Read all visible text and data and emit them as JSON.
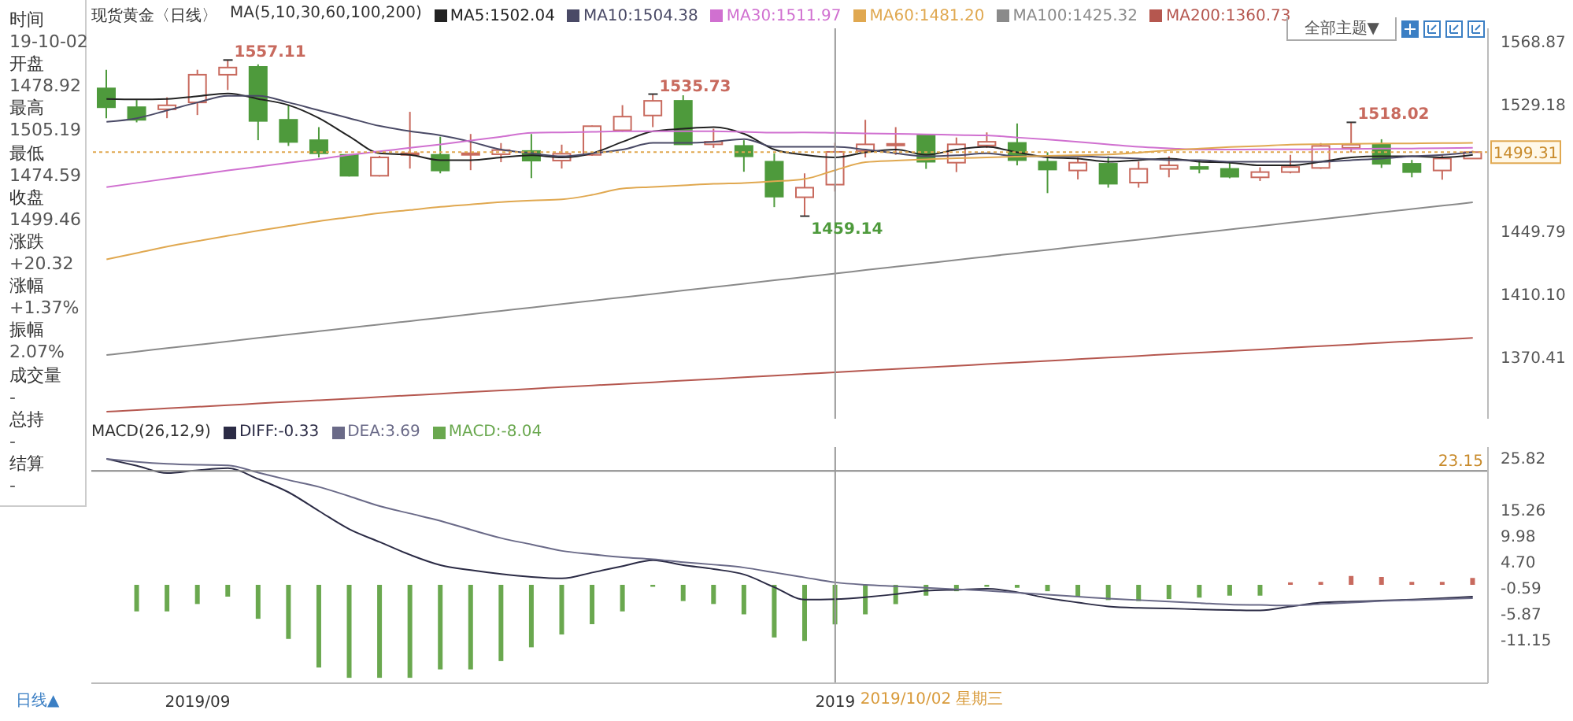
{
  "chart_data": [
    {
      "type": "other",
      "annotations": [
        "时间",
        "19-10-02",
        "开盘",
        "1478.92",
        "最高",
        "1505.19",
        "最低",
        "1474.59",
        "收盘",
        "1499.46",
        "涨跌",
        "+20.32",
        "涨幅",
        "+1.37%",
        "振幅",
        "2.07%",
        "成交量",
        "-",
        "总持",
        "-",
        "结算",
        "-"
      ]
    },
    {
      "type": "candlestick",
      "title": "现货黄金〈日线〉",
      "subtitle": "MA(5,10,30,60,100,200)",
      "legend": "top",
      "tick_labels": "y",
      "categories": [
        null,
        null,
        null,
        "2019/09",
        null,
        null,
        null,
        null,
        null,
        null,
        null,
        null,
        null,
        null,
        null,
        null,
        null,
        null,
        null,
        null,
        null,
        null,
        null,
        null,
        "2019",
        null,
        null,
        null,
        null,
        null,
        null,
        null,
        null,
        null,
        null,
        null,
        null,
        null,
        null,
        null,
        null,
        null,
        null,
        null,
        null,
        null
      ],
      "ohlc": [
        [
          1539.3,
          1551,
          1520.6,
          1527.5
        ],
        [
          1527.5,
          1532,
          1518,
          1519.6
        ],
        [
          1526.2,
          1533.7,
          1520.6,
          1528.7
        ],
        [
          1530.5,
          1551,
          1522.6,
          1547.9
        ],
        [
          1547.9,
          1557.11,
          1538.3,
          1552.4
        ],
        [
          1552.8,
          1554.4,
          1506.8,
          1518.9
        ],
        [
          1519.6,
          1528.8,
          1503.2,
          1505.7
        ],
        [
          1506.8,
          1515,
          1496,
          1498.6
        ],
        [
          1497.6,
          1498,
          1484,
          1484.5
        ],
        [
          1484.5,
          1497,
          1484,
          1496
        ],
        [
          1498,
          1524.6,
          1489,
          1498.6
        ],
        [
          1497.6,
          1509,
          1486,
          1487.8
        ],
        [
          1498,
          1510.7,
          1488,
          1498.6
        ],
        [
          1498,
          1505,
          1493,
          1500.6
        ],
        [
          1500,
          1510.7,
          1483,
          1494
        ],
        [
          1494,
          1504,
          1489,
          1498.3
        ],
        [
          1497.6,
          1516,
          1497,
          1515.6
        ],
        [
          1513,
          1528.8,
          1512,
          1521.6
        ],
        [
          1522.3,
          1535.73,
          1515,
          1531.5
        ],
        [
          1531.5,
          1535,
          1504,
          1504.2
        ],
        [
          1504.2,
          1514,
          1502,
          1505.8
        ],
        [
          1503.2,
          1506.8,
          1487,
          1496.7
        ],
        [
          1493.3,
          1498.6,
          1464.8,
          1471.4
        ],
        [
          1471,
          1486,
          1459.14,
          1477
        ],
        [
          1478.92,
          1505.19,
          1474.59,
          1499.46
        ],
        [
          1500,
          1519.6,
          1496,
          1504.2
        ],
        [
          1504.2,
          1515,
          1497.6,
          1504.5
        ],
        [
          1509.8,
          1510.8,
          1488.8,
          1493.3
        ],
        [
          1492.7,
          1508.5,
          1486.8,
          1504.2
        ],
        [
          1503.5,
          1511.7,
          1501.9,
          1505.8
        ],
        [
          1505.1,
          1517.3,
          1491,
          1494.3
        ],
        [
          1493.3,
          1499.2,
          1473.6,
          1488.4
        ],
        [
          1487.8,
          1496,
          1482.2,
          1492.7
        ],
        [
          1492,
          1496.7,
          1477,
          1479.5
        ],
        [
          1480.2,
          1493.4,
          1477,
          1488.8
        ],
        [
          1488.8,
          1496.7,
          1483.5,
          1491
        ],
        [
          1490,
          1494.4,
          1486,
          1488.8
        ],
        [
          1488.8,
          1493.4,
          1482.9,
          1483.9
        ],
        [
          1483.5,
          1489.8,
          1481.2,
          1486.8
        ],
        [
          1486.8,
          1497.6,
          1486,
          1490
        ],
        [
          1489.4,
          1505,
          1488.8,
          1503.2
        ],
        [
          1502,
          1518.02,
          1499.2,
          1504
        ],
        [
          1504.2,
          1507.4,
          1489.4,
          1492
        ],
        [
          1492,
          1494.4,
          1483.5,
          1486.8
        ],
        [
          1487.8,
          1497.6,
          1482,
          1495.3
        ],
        [
          1495.3,
          1500.2,
          1495,
          1499.31
        ]
      ],
      "colors": [
        "#4e9a3c",
        "#4e9a3c",
        "#c86a5e",
        "#c86a5e",
        "#c86a5e",
        "#4e9a3c",
        "#4e9a3c",
        "#4e9a3c",
        "#4e9a3c",
        "#c86a5e",
        "#c86a5e",
        "#4e9a3c",
        "#c86a5e",
        "#c86a5e",
        "#4e9a3c",
        "#c86a5e",
        "#c86a5e",
        "#c86a5e",
        "#c86a5e",
        "#4e9a3c",
        "#c86a5e",
        "#4e9a3c",
        "#4e9a3c",
        "#c86a5e",
        "#c86a5e",
        "#c86a5e",
        "#c86a5e",
        "#4e9a3c",
        "#c86a5e",
        "#c86a5e",
        "#4e9a3c",
        "#4e9a3c",
        "#c86a5e",
        "#4e9a3c",
        "#c86a5e",
        "#c86a5e",
        "#4e9a3c",
        "#4e9a3c",
        "#c86a5e",
        "#c86a5e",
        "#c86a5e",
        "#c86a5e",
        "#4e9a3c",
        "#4e9a3c",
        "#c86a5e",
        "#c86a5e"
      ],
      "series": [
        {
          "name": "MA5:1502.04",
          "type": "line",
          "color": "#222222",
          "values": [
            1532.7,
            1532.4,
            1532.7,
            1534.4,
            1536.1,
            1532.7,
            1528.8,
            1520.6,
            1509.1,
            1498.6,
            1497.6,
            1494.3,
            1494.3,
            1496.0,
            1497.3,
            1496.0,
            1498.6,
            1505.8,
            1512.4,
            1514.0,
            1515.0,
            1510.8,
            1500.9,
            1497.6,
            1496.0,
            1499.2,
            1500.9,
            1497.6,
            1500.9,
            1502.6,
            1499.2,
            1496.0,
            1495.3,
            1493.3,
            1494.3,
            1495.3,
            1493.3,
            1492.7,
            1491.0,
            1491.0,
            1493.3,
            1496.0,
            1496.7,
            1496.7,
            1496.0,
            1497.6
          ]
        },
        {
          "name": "MA10:1504.38",
          "type": "line",
          "color": "#4a4a66",
          "values": [
            1518.3,
            1520.6,
            1525.5,
            1530.5,
            1534.7,
            1534.7,
            1530.5,
            1525.5,
            1520.6,
            1515.7,
            1512.4,
            1509.8,
            1505.8,
            1500.9,
            1498.6,
            1496.7,
            1498.6,
            1500.9,
            1505.1,
            1505.1,
            1505.8,
            1507.5,
            1502.6,
            1502.6,
            1502.6,
            1500.9,
            1498.6,
            1496.7,
            1497.3,
            1498.6,
            1496.7,
            1496.7,
            1496.7,
            1496.0,
            1495.3,
            1494.3,
            1494.3,
            1493.3,
            1493.3,
            1493.3,
            1493.3,
            1494.3,
            1495.3,
            1496.7,
            1497.6,
            1499.2
          ]
        },
        {
          "name": "MA30:1511.97",
          "type": "line",
          "color": "#d070d0",
          "values": [
            1477.3,
            1480,
            1482.6,
            1485.2,
            1487.8,
            1490.2,
            1492.6,
            1495,
            1497.6,
            1499.8,
            1502,
            1504.2,
            1506.6,
            1509,
            1511.4,
            1511.7,
            1512,
            1512.4,
            1512.4,
            1512.4,
            1512.4,
            1512,
            1511.5,
            1511.7,
            1511.4,
            1511.1,
            1510.8,
            1510.5,
            1510.1,
            1509.8,
            1508.5,
            1507.2,
            1505.8,
            1504.2,
            1502.6,
            1501.7,
            1500.9,
            1500.9,
            1501,
            1501,
            1501.2,
            1501.3,
            1501.5,
            1501.6,
            1501.8,
            1502
          ]
        },
        {
          "name": "MA60:1481.20",
          "type": "line",
          "color": "#e0a850",
          "values": [
            1432,
            1436,
            1440,
            1443.5,
            1446.8,
            1450,
            1453,
            1456,
            1458.5,
            1461,
            1463,
            1465,
            1466.5,
            1468,
            1469,
            1469.7,
            1472.5,
            1476.5,
            1477.5,
            1478.5,
            1479.5,
            1480,
            1481,
            1482.5,
            1488,
            1493,
            1494,
            1494.8,
            1495.5,
            1496,
            1496.5,
            1497,
            1497.4,
            1497.8,
            1499,
            1500.5,
            1501.5,
            1502.5,
            1503.2,
            1504,
            1504.3,
            1504.5,
            1504.7,
            1504.8,
            1505,
            1505.1
          ]
        },
        {
          "name": "MA100:1425.32",
          "type": "line",
          "color": "#8a8a8a",
          "values": [
            1372.0,
            1374.1,
            1376.3,
            1378.4,
            1380.5,
            1382.7,
            1384.8,
            1386.9,
            1389.0,
            1391.2,
            1393.3,
            1395.4,
            1397.6,
            1399.7,
            1401.8,
            1404.0,
            1406.1,
            1408.2,
            1410.3,
            1412.5,
            1414.6,
            1416.7,
            1418.9,
            1421.0,
            1423.1,
            1425.3,
            1427.4,
            1429.5,
            1431.6,
            1433.8,
            1435.9,
            1438.0,
            1440.2,
            1442.3,
            1444.4,
            1446.6,
            1448.7,
            1450.8,
            1452.9,
            1455.1,
            1457.2,
            1459.3,
            1461.5,
            1463.6,
            1465.7,
            1467.8
          ]
        },
        {
          "name": "MA200:1360.73",
          "type": "line",
          "color": "#b5574f",
          "values": [
            1336.4,
            1337.4,
            1338.5,
            1339.5,
            1340.5,
            1341.6,
            1342.6,
            1343.6,
            1344.6,
            1345.7,
            1346.7,
            1347.7,
            1348.8,
            1349.8,
            1350.8,
            1351.9,
            1352.9,
            1353.9,
            1354.9,
            1356.0,
            1357.0,
            1358.0,
            1359.1,
            1360.1,
            1361.1,
            1362.2,
            1363.2,
            1364.2,
            1365.2,
            1366.3,
            1367.3,
            1368.3,
            1369.4,
            1370.4,
            1371.4,
            1372.5,
            1373.5,
            1374.5,
            1375.5,
            1376.6,
            1377.6,
            1378.6,
            1379.7,
            1380.7,
            1381.7,
            1382.8
          ]
        }
      ],
      "ylim": [
        1332,
        1577
      ],
      "yticks": [
        1370.41,
        {
          "value": 1410.1,
          "label": "1410.10"
        },
        1449.79,
        1529.18,
        1568.87
      ],
      "ref_lines": [
        {
          "axis": "y",
          "value": 1499.31,
          "label": "1499.31",
          "color": "#e0a850",
          "line_style": "dotted"
        },
        {
          "axis": "x",
          "value": "2019",
          "color": "#999999"
        }
      ],
      "annotations": [
        {
          "text": "1557.11",
          "y": 1557.11
        },
        {
          "text": "1535.73",
          "y": 1535.73
        },
        "1459.14",
        "1518.02",
        "全部主题▼"
      ]
    },
    {
      "type": "bar",
      "title": "MACD(26,12,9)",
      "legend": "top",
      "categories": [
        null,
        null,
        null,
        "2019/09",
        null,
        null,
        null,
        null,
        null,
        null,
        null,
        null,
        null,
        null,
        null,
        null,
        null,
        null,
        null,
        null,
        null,
        null,
        null,
        null,
        "2019",
        null,
        null,
        null,
        null,
        null,
        null,
        null,
        null,
        null,
        null,
        null,
        null,
        null,
        null,
        null,
        null,
        null,
        null,
        null,
        null,
        null
      ],
      "series": [
        {
          "name": "DIFF:-0.33",
          "type": "line",
          "color": "#2b2b45",
          "values": [
            25.6,
            24.2,
            22.7,
            23.3,
            23.7,
            21.5,
            18.8,
            15.0,
            11.3,
            8.7,
            6.1,
            4.0,
            3.0,
            2.2,
            1.6,
            1.3,
            2.5,
            3.8,
            5.0,
            4.0,
            3.2,
            2.1,
            -0.5,
            -3.0,
            -2.9,
            -2.5,
            -1.9,
            -1.2,
            -1.0,
            -0.8,
            -1.5,
            -2.7,
            -3.6,
            -4.4,
            -4.7,
            -4.8,
            -5.0,
            -5.1,
            -5.2,
            -4.4,
            -3.6,
            -3.4,
            -3.2,
            -3.0,
            -2.7,
            -2.4
          ]
        },
        {
          "name": "DEA:3.69",
          "type": "line",
          "color": "#6a6a88",
          "values": [
            25.6,
            25.0,
            24.6,
            24.4,
            24.3,
            22.8,
            21.3,
            19.9,
            18.0,
            16.0,
            14.5,
            13.0,
            11.2,
            9.5,
            8.2,
            6.9,
            6.2,
            5.6,
            5.2,
            4.6,
            4.1,
            3.5,
            2.5,
            1.5,
            0.5,
            0.0,
            -0.3,
            -0.6,
            -0.9,
            -1.2,
            -1.6,
            -2.0,
            -2.4,
            -2.8,
            -3.1,
            -3.4,
            -3.7,
            -4.0,
            -4.1,
            -4.2,
            -3.9,
            -3.6,
            -3.3,
            -3.1,
            -2.9,
            -2.7
          ]
        },
        {
          "name": "MACD:-8.04",
          "type": "bar",
          "color": "#6aa84f",
          "values": [
            null,
            -5.4,
            -5.4,
            -3.9,
            -2.4,
            -6.9,
            -11,
            -16.8,
            -18.9,
            -18.9,
            -18.9,
            -17.2,
            -17.2,
            -15.5,
            -12.7,
            -10.1,
            -8.0,
            -5.4,
            -0.4,
            -3.3,
            -3.9,
            -6.0,
            -10.7,
            -11.4,
            -8.04,
            -6.0,
            -3.9,
            -2.2,
            -1.3,
            -0.4,
            -0.6,
            -1.3,
            -2.4,
            -3.1,
            -3.3,
            -2.9,
            -2.6,
            -2.2,
            -2.2,
            0.5,
            0.6,
            1.8,
            1.6,
            0.6,
            0.6,
            1.4
          ],
          "colors": [
            null,
            "#6aa84f",
            "#6aa84f",
            "#6aa84f",
            "#6aa84f",
            "#6aa84f",
            "#6aa84f",
            "#6aa84f",
            "#6aa84f",
            "#6aa84f",
            "#6aa84f",
            "#6aa84f",
            "#6aa84f",
            "#6aa84f",
            "#6aa84f",
            "#6aa84f",
            "#6aa84f",
            "#6aa84f",
            "#6aa84f",
            "#6aa84f",
            "#6aa84f",
            "#6aa84f",
            "#6aa84f",
            "#6aa84f",
            "#6aa84f",
            "#6aa84f",
            "#6aa84f",
            "#6aa84f",
            "#6aa84f",
            "#6aa84f",
            "#6aa84f",
            "#6aa84f",
            "#6aa84f",
            "#6aa84f",
            "#6aa84f",
            "#6aa84f",
            "#6aa84f",
            "#6aa84f",
            "#6aa84f",
            "#c86a5e",
            "#c86a5e",
            "#c86a5e",
            "#c86a5e",
            "#c86a5e",
            "#c86a5e",
            "#c86a5e"
          ]
        }
      ],
      "ylim": [
        -20,
        28
      ],
      "yticks": [
        -11.15,
        -5.87,
        -0.59,
        {
          "value": 4.7,
          "label": "4.70"
        },
        9.98,
        15.26,
        25.82
      ],
      "ref_lines": [
        {
          "axis": "y",
          "value": 23.15,
          "label": "23.15",
          "color": "#888888"
        },
        {
          "axis": "x",
          "value": "2019",
          "label": "2019/10/02 星期三",
          "color": "#999999"
        }
      ],
      "annotations": [
        "日线▲"
      ]
    }
  ]
}
